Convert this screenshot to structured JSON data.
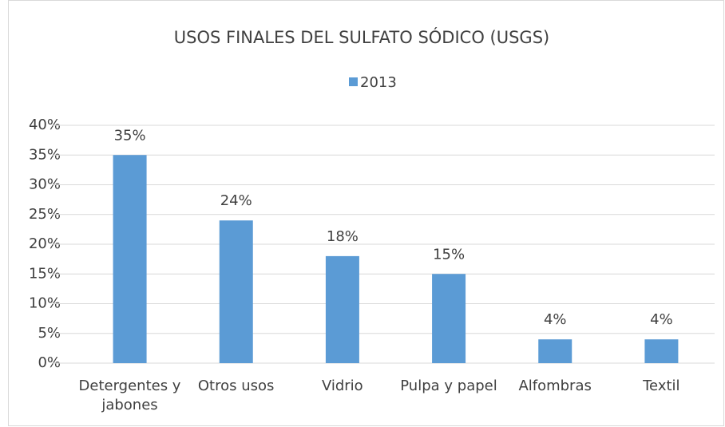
{
  "chart_data": {
    "type": "bar",
    "title": "USOS FINALES DEL SULFATO SÓDICO (USGS)",
    "categories": [
      "Detergentes y jabones",
      "Otros usos",
      "Vidrio",
      "Pulpa y papel",
      "Alfombras",
      "Textil"
    ],
    "series": [
      {
        "name": "2013",
        "color": "#5b9bd5",
        "values": [
          35,
          24,
          18,
          15,
          4,
          4
        ],
        "value_labels": [
          "35%",
          "24%",
          "18%",
          "15%",
          "4%",
          "4%"
        ]
      }
    ],
    "ylim": [
      0,
      40
    ],
    "yticks": [
      {
        "value": 0,
        "label": "0%"
      },
      {
        "value": 5,
        "label": "5%"
      },
      {
        "value": 10,
        "label": "10%"
      },
      {
        "value": 15,
        "label": "15%"
      },
      {
        "value": 20,
        "label": "20%"
      },
      {
        "value": 25,
        "label": "25%"
      },
      {
        "value": 30,
        "label": "30%"
      },
      {
        "value": 35,
        "label": "35%"
      },
      {
        "value": 40,
        "label": "40%"
      }
    ],
    "grid": true,
    "legend": "top"
  }
}
